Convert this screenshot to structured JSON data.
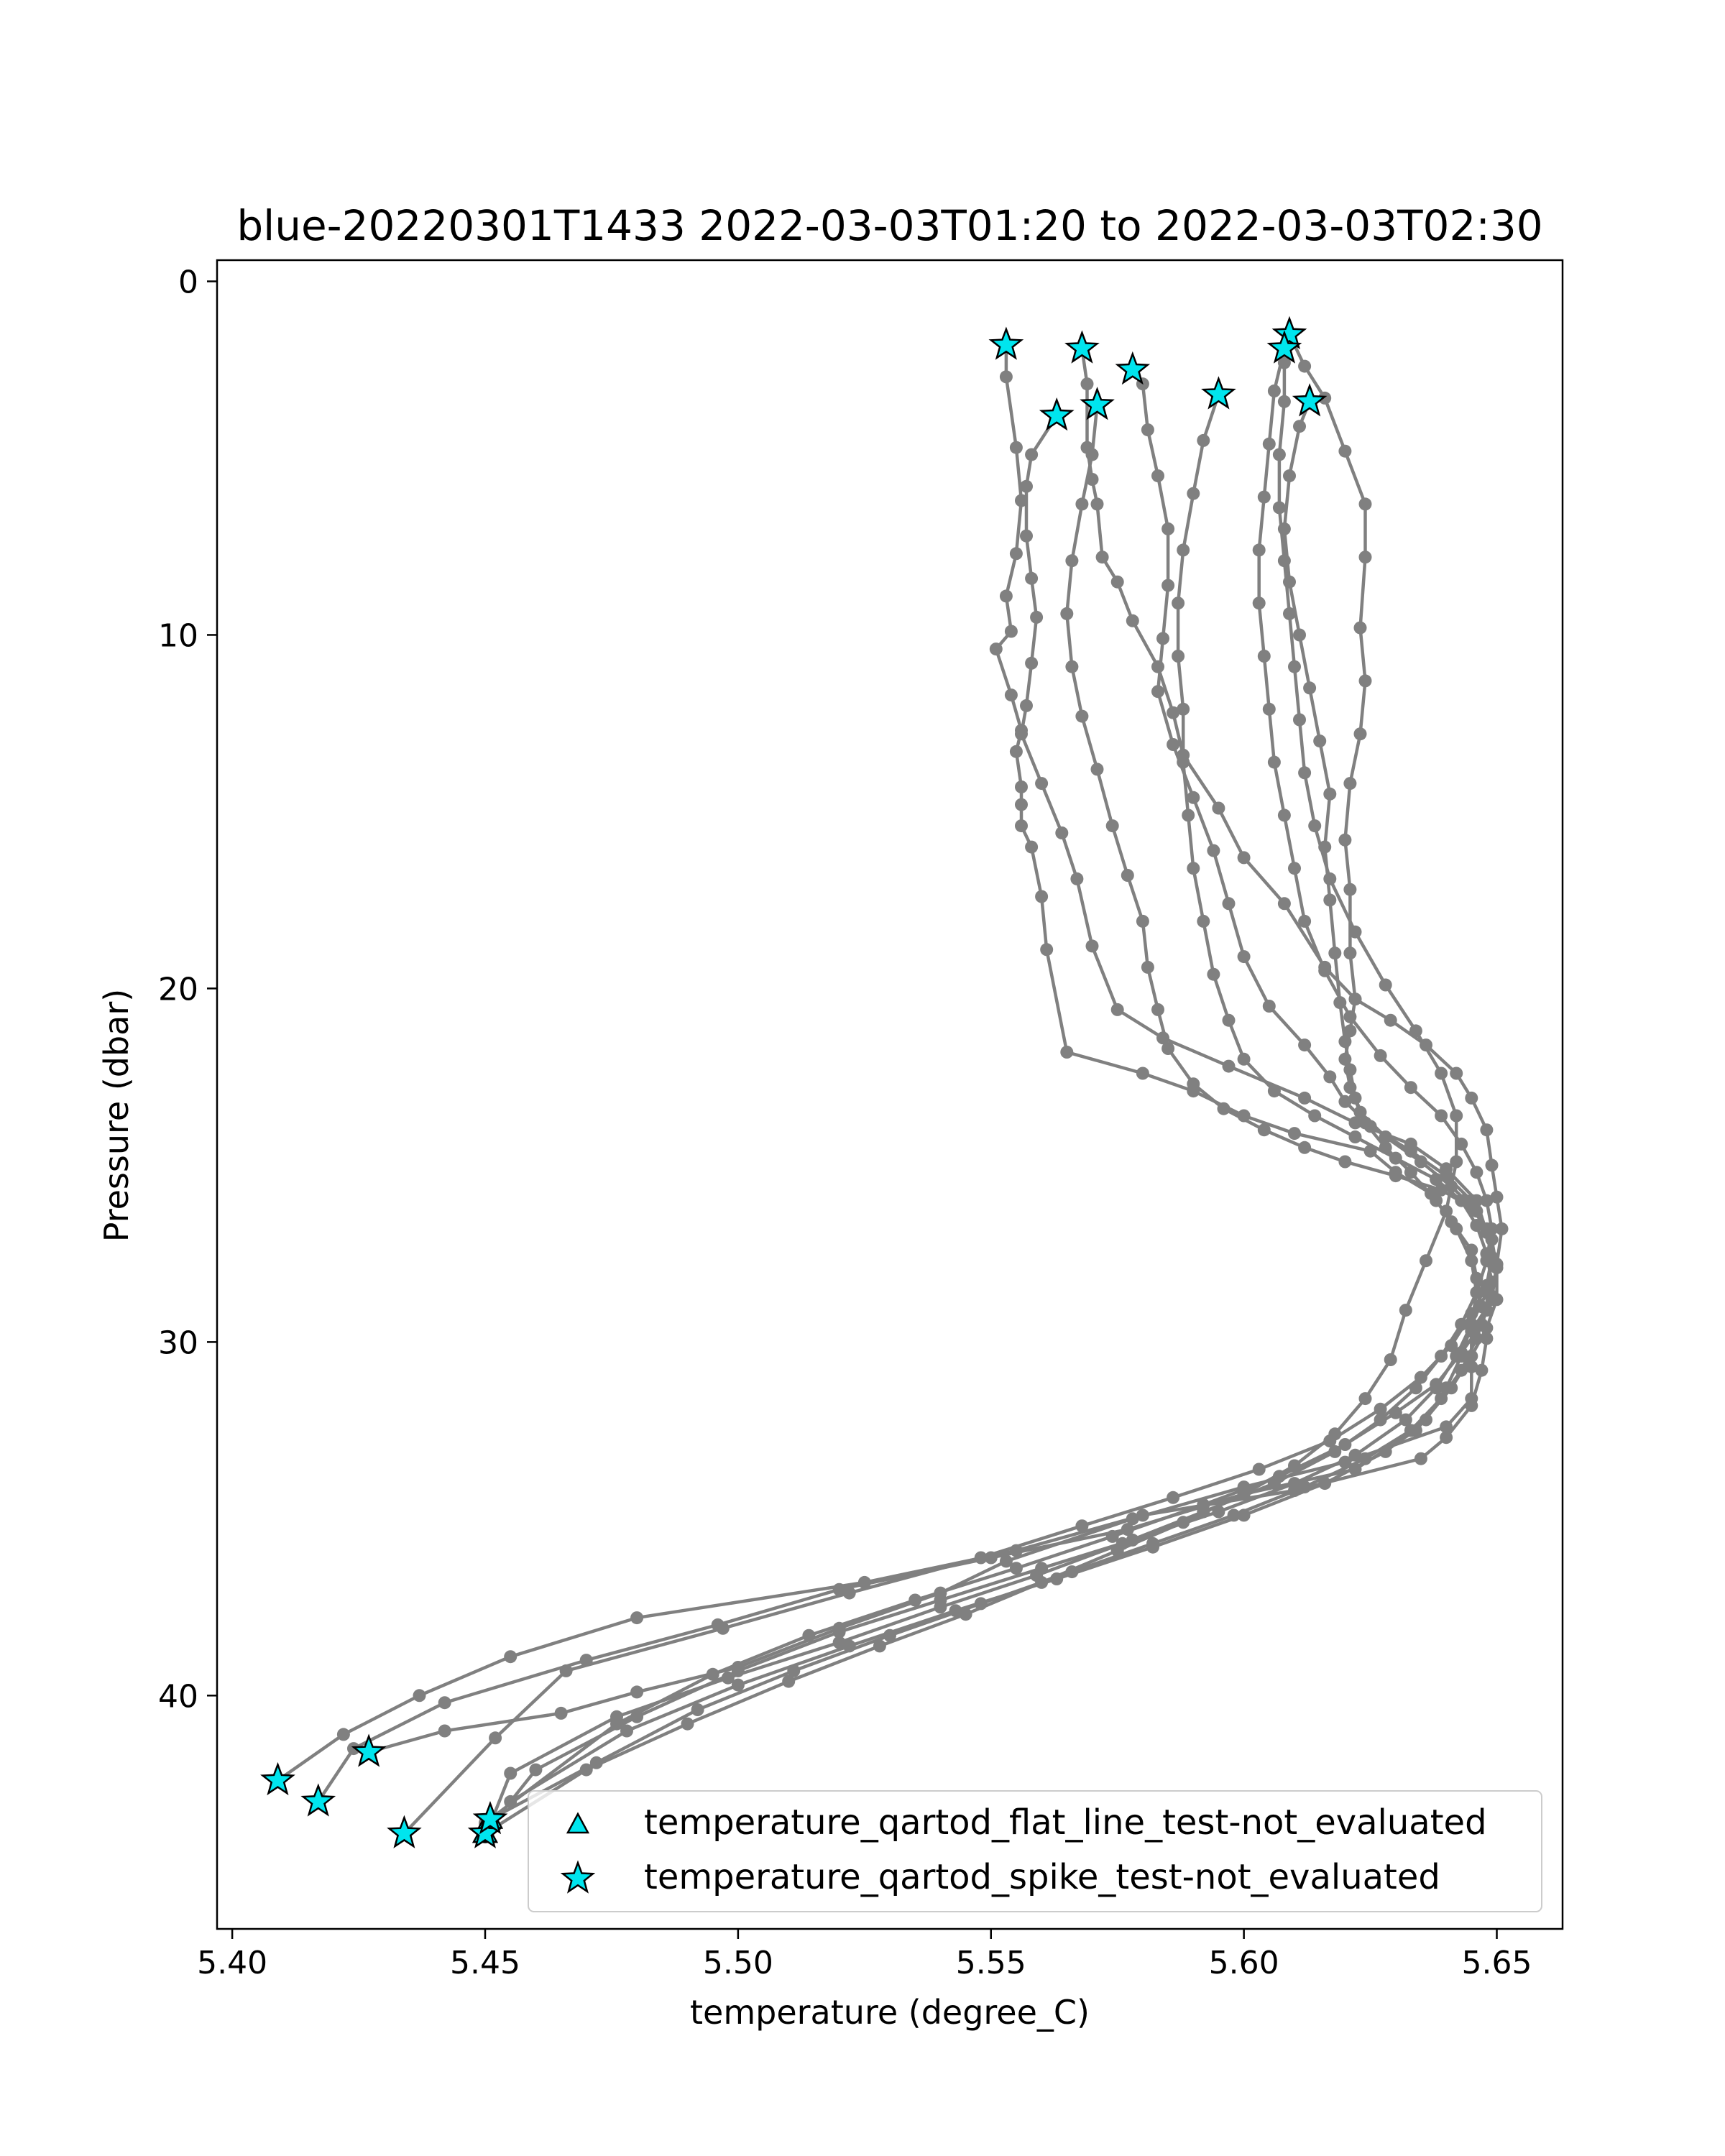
{
  "chart_data": {
    "type": "scatter",
    "title": "blue-20220301T1433 2022-03-03T01:20 to 2022-03-03T02:30",
    "xlabel": "temperature (degree_C)",
    "ylabel": "Pressure (dbar)",
    "xlim": [
      5.397,
      5.663
    ],
    "ylim": [
      46.6,
      -0.6
    ],
    "y_inverted": true,
    "xticks": [
      "5.40",
      "5.45",
      "5.50",
      "5.55",
      "5.60",
      "5.65"
    ],
    "yticks": [
      "0",
      "10",
      "20",
      "30",
      "40"
    ],
    "grid": false,
    "legend_position": "lower-right",
    "colors": {
      "profile": "#808080",
      "marker_fill": "#00e5ee",
      "marker_edge": "#000000"
    },
    "legend": [
      {
        "label": "temperature_qartod_flat_line_test-not_evaluated",
        "marker": "triangle"
      },
      {
        "label": "temperature_qartod_spike_test-not_evaluated",
        "marker": "star"
      }
    ],
    "series": [
      {
        "x": [
          5.553,
          5.553,
          5.555,
          5.556,
          5.555,
          5.553,
          5.554,
          5.551,
          5.554,
          5.556,
          5.555,
          5.556,
          5.556,
          5.556,
          5.558,
          5.56,
          5.561,
          5.565,
          5.58,
          5.59,
          5.6,
          5.61,
          5.625,
          5.63,
          5.637,
          5.641,
          5.645,
          5.646,
          5.647,
          5.648,
          5.647,
          5.645,
          5.64,
          5.635,
          5.61,
          5.58,
          5.555,
          5.525,
          5.48,
          5.455,
          5.437,
          5.422,
          5.409
        ],
        "y": [
          1.8,
          2.7,
          4.7,
          6.2,
          7.7,
          8.9,
          9.9,
          10.4,
          11.7,
          12.7,
          13.3,
          14.3,
          14.8,
          15.4,
          16.0,
          17.4,
          18.9,
          21.8,
          22.4,
          22.9,
          23.6,
          24.1,
          24.6,
          25.2,
          25.8,
          26.6,
          27.4,
          28.2,
          29.0,
          29.9,
          30.8,
          31.8,
          32.7,
          33.3,
          34.2,
          34.9,
          35.9,
          36.8,
          37.8,
          38.9,
          40.0,
          41.1,
          42.4
        ]
      },
      {
        "x": [
          5.568,
          5.569,
          5.569,
          5.57,
          5.571,
          5.572,
          5.575,
          5.578,
          5.583,
          5.586,
          5.588,
          5.595,
          5.6,
          5.608,
          5.616,
          5.622,
          5.629,
          5.636,
          5.642,
          5.645,
          5.648,
          5.649,
          5.65,
          5.651,
          5.65,
          5.649,
          5.645,
          5.645,
          5.645,
          5.64,
          5.62,
          5.6,
          5.578,
          5.553,
          5.54,
          5.52,
          5.5,
          5.48,
          5.465,
          5.442,
          5.427
        ],
        "y": [
          1.9,
          2.9,
          4.7,
          5.6,
          6.3,
          7.8,
          8.5,
          9.6,
          10.9,
          12.2,
          13.4,
          14.9,
          16.3,
          17.6,
          19.4,
          20.3,
          20.9,
          21.6,
          22.4,
          23.1,
          24.0,
          25.0,
          25.9,
          26.8,
          27.8,
          28.8,
          29.7,
          30.7,
          31.6,
          32.4,
          33.4,
          34.1,
          35.0,
          36.2,
          37.1,
          38.1,
          39.2,
          39.9,
          40.5,
          41.0,
          41.6
        ]
      },
      {
        "x": [
          5.563,
          5.558,
          5.557,
          5.557,
          5.558,
          5.559,
          5.558,
          5.557,
          5.556,
          5.56,
          5.564,
          5.567,
          5.57,
          5.575,
          5.584,
          5.597,
          5.612,
          5.622,
          5.633,
          5.64,
          5.646,
          5.648,
          5.65,
          5.65,
          5.648,
          5.645,
          5.641,
          5.634,
          5.622,
          5.6,
          5.577,
          5.55,
          5.52,
          5.496,
          5.47,
          5.442,
          5.424,
          5.417
        ],
        "y": [
          3.8,
          4.9,
          5.8,
          7.2,
          8.4,
          9.5,
          10.8,
          12.0,
          12.8,
          14.2,
          15.6,
          16.9,
          18.8,
          20.6,
          21.4,
          22.2,
          23.1,
          23.8,
          24.4,
          25.1,
          26.0,
          26.9,
          27.8,
          28.8,
          29.6,
          30.4,
          31.3,
          32.5,
          33.6,
          34.3,
          35.3,
          36.1,
          37.0,
          38.0,
          39.0,
          40.2,
          41.5,
          43.0
        ]
      },
      {
        "x": [
          5.571,
          5.57,
          5.568,
          5.566,
          5.565,
          5.566,
          5.568,
          5.571,
          5.574,
          5.577,
          5.58,
          5.581,
          5.583,
          5.585,
          5.59,
          5.596,
          5.604,
          5.612,
          5.62,
          5.63,
          5.639,
          5.645,
          5.648,
          5.649,
          5.648,
          5.645,
          5.641,
          5.635,
          5.627,
          5.617,
          5.603,
          5.586,
          5.568,
          5.548,
          5.522,
          5.497,
          5.466,
          5.452,
          5.434
        ],
        "y": [
          3.5,
          4.9,
          6.3,
          7.9,
          9.4,
          10.9,
          12.3,
          13.8,
          15.4,
          16.8,
          18.1,
          19.4,
          20.6,
          21.7,
          22.7,
          23.4,
          24.0,
          24.5,
          24.9,
          25.3,
          25.7,
          26.2,
          26.8,
          27.6,
          28.4,
          29.2,
          30.1,
          31.0,
          31.9,
          32.8,
          33.6,
          34.4,
          35.2,
          36.1,
          37.1,
          38.1,
          39.3,
          41.2,
          43.9
        ]
      },
      {
        "x": [
          5.578,
          5.58,
          5.581,
          5.583,
          5.585,
          5.585,
          5.584,
          5.583,
          5.586,
          5.59,
          5.594,
          5.597,
          5.6,
          5.605,
          5.612,
          5.617,
          5.62,
          5.625,
          5.633,
          5.64,
          5.645,
          5.648,
          5.649,
          5.648,
          5.645,
          5.642,
          5.638,
          5.632,
          5.622,
          5.61,
          5.595,
          5.578,
          5.56,
          5.54,
          5.52,
          5.5,
          5.48,
          5.46,
          5.45
        ],
        "y": [
          2.5,
          2.9,
          4.2,
          5.5,
          7.0,
          8.6,
          10.1,
          11.6,
          13.1,
          14.6,
          16.1,
          17.6,
          19.1,
          20.5,
          21.6,
          22.5,
          23.2,
          23.9,
          24.6,
          25.3,
          26.0,
          26.8,
          27.7,
          28.6,
          29.5,
          30.4,
          31.3,
          32.2,
          33.2,
          34.0,
          34.8,
          35.6,
          36.4,
          37.3,
          38.2,
          39.3,
          40.6,
          42.1,
          43.9
        ]
      },
      {
        "x": [
          5.595,
          5.592,
          5.59,
          5.588,
          5.587,
          5.587,
          5.588,
          5.588,
          5.589,
          5.59,
          5.592,
          5.594,
          5.597,
          5.6,
          5.606,
          5.614,
          5.622,
          5.63,
          5.638,
          5.643,
          5.646,
          5.648,
          5.649,
          5.648,
          5.646,
          5.643,
          5.639,
          5.633,
          5.624,
          5.612,
          5.598,
          5.582,
          5.566,
          5.548,
          5.53,
          5.511,
          5.492,
          5.472,
          5.451
        ],
        "y": [
          3.2,
          4.5,
          6.0,
          7.6,
          9.1,
          10.6,
          12.1,
          13.6,
          15.1,
          16.6,
          18.1,
          19.6,
          20.9,
          22.0,
          22.9,
          23.6,
          24.2,
          24.8,
          25.4,
          26.0,
          26.7,
          27.5,
          28.3,
          29.1,
          29.9,
          30.8,
          31.6,
          32.5,
          33.3,
          34.1,
          34.9,
          35.7,
          36.5,
          37.4,
          38.3,
          39.3,
          40.4,
          41.9,
          43.5
        ]
      },
      {
        "x": [
          5.608,
          5.606,
          5.605,
          5.604,
          5.603,
          5.603,
          5.604,
          5.605,
          5.606,
          5.608,
          5.61,
          5.612,
          5.616,
          5.621,
          5.627,
          5.633,
          5.639,
          5.643,
          5.646,
          5.648,
          5.649,
          5.648,
          5.646,
          5.643,
          5.639,
          5.634,
          5.627,
          5.618,
          5.606,
          5.592,
          5.576,
          5.559,
          5.54,
          5.52,
          5.498,
          5.476,
          5.455,
          5.45
        ],
        "y": [
          1.9,
          3.1,
          4.6,
          6.1,
          7.6,
          9.1,
          10.6,
          12.1,
          13.6,
          15.1,
          16.6,
          18.1,
          19.5,
          20.8,
          21.9,
          22.8,
          23.6,
          24.4,
          25.2,
          26.0,
          26.8,
          27.7,
          28.6,
          29.5,
          30.4,
          31.3,
          32.2,
          33.1,
          34.0,
          34.8,
          35.7,
          36.6,
          37.5,
          38.5,
          39.5,
          40.6,
          42.2,
          44.0
        ]
      },
      {
        "x": [
          5.609,
          5.612,
          5.616,
          5.62,
          5.624,
          5.624,
          5.623,
          5.624,
          5.623,
          5.621,
          5.62,
          5.621,
          5.621,
          5.622,
          5.621,
          5.62,
          5.621,
          5.623,
          5.628,
          5.635,
          5.641,
          5.646,
          5.649,
          5.65,
          5.649,
          5.647,
          5.643,
          5.638,
          5.63,
          5.62,
          5.607,
          5.592,
          5.574,
          5.555,
          5.535,
          5.514,
          5.495,
          5.476,
          5.45
        ],
        "y": [
          1.5,
          2.4,
          3.3,
          4.8,
          6.3,
          7.8,
          9.8,
          11.3,
          12.8,
          14.2,
          15.8,
          17.2,
          19.0,
          20.3,
          21.2,
          22.0,
          22.8,
          23.5,
          24.2,
          24.9,
          25.6,
          26.3,
          27.1,
          27.9,
          28.7,
          29.5,
          30.3,
          31.2,
          32.0,
          32.9,
          33.8,
          34.6,
          35.5,
          36.4,
          37.3,
          38.3,
          39.4,
          40.8,
          43.6
        ]
      },
      {
        "x": [
          5.613,
          5.611,
          5.609,
          5.608,
          5.609,
          5.611,
          5.613,
          5.615,
          5.617,
          5.616,
          5.617,
          5.618,
          5.619,
          5.62,
          5.621,
          5.622,
          5.624,
          5.628,
          5.633,
          5.638,
          5.642,
          5.645,
          5.646,
          5.645,
          5.643,
          5.64,
          5.636,
          5.628,
          5.616,
          5.6,
          5.582,
          5.563,
          5.543,
          5.522,
          5.5,
          5.478,
          5.455
        ],
        "y": [
          3.4,
          4.1,
          5.5,
          7.0,
          8.5,
          10.0,
          11.5,
          13.0,
          14.5,
          16.0,
          17.5,
          19.0,
          20.4,
          21.5,
          22.3,
          23.1,
          23.8,
          24.5,
          25.2,
          26.0,
          26.8,
          27.7,
          28.6,
          29.5,
          30.4,
          31.3,
          32.2,
          33.1,
          34.0,
          34.9,
          35.8,
          36.7,
          37.6,
          38.6,
          39.7,
          41.0,
          43.0
        ]
      },
      {
        "x": [
          5.608,
          5.608,
          5.607,
          5.607,
          5.608,
          5.609,
          5.61,
          5.611,
          5.612,
          5.614,
          5.617,
          5.622,
          5.628,
          5.634,
          5.639,
          5.642,
          5.642,
          5.64,
          5.636,
          5.632,
          5.629,
          5.624,
          5.618,
          5.61,
          5.6,
          5.588,
          5.575,
          5.56,
          5.545,
          5.528,
          5.51,
          5.49,
          5.47,
          5.45
        ],
        "y": [
          2.3,
          3.4,
          4.9,
          6.4,
          7.9,
          9.4,
          10.9,
          12.4,
          13.9,
          15.4,
          16.9,
          18.4,
          19.9,
          21.2,
          22.4,
          23.6,
          24.9,
          26.3,
          27.7,
          29.1,
          30.5,
          31.6,
          32.6,
          33.5,
          34.3,
          35.1,
          35.9,
          36.8,
          37.7,
          38.6,
          39.6,
          40.8,
          42.1,
          43.9
        ]
      }
    ],
    "spike_not_evaluated_points": [
      {
        "x": 5.553,
        "y": 1.8
      },
      {
        "x": 5.568,
        "y": 1.9
      },
      {
        "x": 5.578,
        "y": 2.5
      },
      {
        "x": 5.595,
        "y": 3.2
      },
      {
        "x": 5.609,
        "y": 1.5
      },
      {
        "x": 5.608,
        "y": 1.9
      },
      {
        "x": 5.613,
        "y": 3.4
      },
      {
        "x": 5.563,
        "y": 3.8
      },
      {
        "x": 5.571,
        "y": 3.5
      },
      {
        "x": 5.409,
        "y": 42.4
      },
      {
        "x": 5.427,
        "y": 41.6
      },
      {
        "x": 5.417,
        "y": 43.0
      },
      {
        "x": 5.434,
        "y": 43.9
      },
      {
        "x": 5.45,
        "y": 43.9
      },
      {
        "x": 5.451,
        "y": 43.5
      }
    ],
    "flat_line_not_evaluated_points": [
      {
        "x": 5.451,
        "y": 43.5
      },
      {
        "x": 5.45,
        "y": 43.9
      }
    ]
  }
}
